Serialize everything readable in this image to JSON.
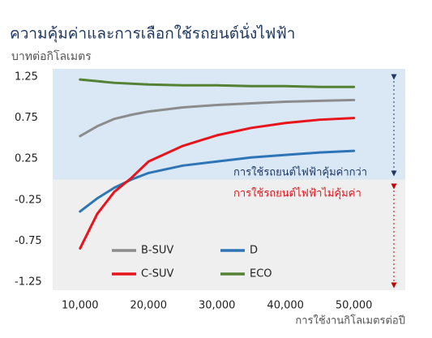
{
  "chart_data": {
    "type": "line",
    "title": "ความคุ้มค่าและการเลือกใช้รถยนต์นั่งไฟฟ้า",
    "y_label": "บาทต่อกิโลเมตร",
    "x_label": "การใช้งานกิโลเมตรต่อปี",
    "annotations": [
      {
        "text": "การใช้รถยนต์ไฟฟ้าคุ้มค่ากว่า",
        "color": "#1f3864"
      },
      {
        "text": "การใช้รถยนต์ไฟฟ้าไม่คุ้มค่า",
        "color": "#e8141c"
      }
    ],
    "x": [
      10000,
      12500,
      15000,
      17500,
      20000,
      25000,
      30000,
      35000,
      40000,
      45000,
      50000
    ],
    "series": [
      {
        "name": "B-SUV",
        "color": "#8c8c8c",
        "values": [
          0.53,
          0.65,
          0.74,
          0.79,
          0.83,
          0.88,
          0.91,
          0.93,
          0.95,
          0.96,
          0.97
        ]
      },
      {
        "name": "D",
        "color": "#2e75b6",
        "values": [
          -0.39,
          -0.23,
          -0.1,
          0.0,
          0.08,
          0.17,
          0.22,
          0.27,
          0.3,
          0.33,
          0.35
        ]
      },
      {
        "name": "C-SUV",
        "color": "#e8141c",
        "values": [
          -0.84,
          -0.42,
          -0.15,
          0.02,
          0.22,
          0.41,
          0.54,
          0.63,
          0.69,
          0.73,
          0.75
        ]
      },
      {
        "name": "ECO",
        "color": "#548235",
        "values": [
          1.22,
          1.2,
          1.18,
          1.17,
          1.16,
          1.15,
          1.15,
          1.14,
          1.14,
          1.13,
          1.13
        ]
      }
    ],
    "xlim": [
      6000,
      57500
    ],
    "xticks": [
      {
        "value": 10000,
        "label": "10,000"
      },
      {
        "value": 20000,
        "label": "20,000"
      },
      {
        "value": 30000,
        "label": "30,000"
      },
      {
        "value": 40000,
        "label": "40,000"
      },
      {
        "value": 50000,
        "label": "50,000"
      }
    ],
    "ylim": [
      -1.35,
      1.35
    ],
    "yticks": [
      1.25,
      0.75,
      0.25,
      -0.25,
      -0.75,
      -1.25
    ],
    "positive_shade": "#dae8f5",
    "negative_shade": "#efefef"
  }
}
